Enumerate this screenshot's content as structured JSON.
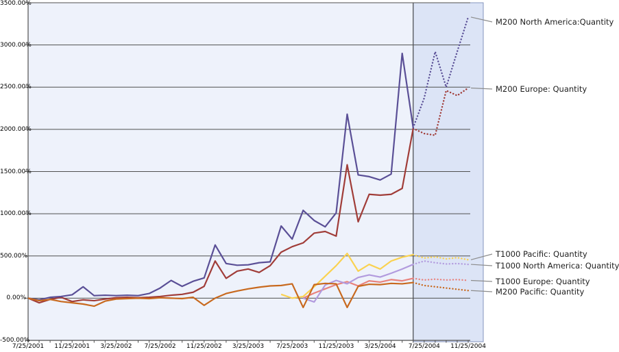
{
  "chart_data": {
    "type": "line",
    "title": "",
    "description": "Time-series forecast chart: solid lines are history, shaded region with dotted lines is the forecast period",
    "x_unit": "month",
    "months": 41,
    "forecast_start_index": 35,
    "x_tick_month_indices": [
      0,
      4,
      8,
      12,
      16,
      20,
      24,
      28,
      32,
      36,
      40
    ],
    "x_tick_labels": [
      "7/25/2001",
      "11/25/2001",
      "3/25/2002",
      "7/25/2002",
      "11/25/2002",
      "3/25/2003",
      "7/25/2003",
      "11/25/2003",
      "3/25/2004",
      "7/25/2004",
      "11/25/2004"
    ],
    "y_axis": {
      "min": -500,
      "max": 3500,
      "step": 500,
      "tick_labels": [
        "3500.00%",
        "3000.00%",
        "2500.00%",
        "2000.00%",
        "1500.00%",
        "1000.00%",
        "500.00%",
        "0.00%",
        "-500.00%"
      ]
    },
    "grid": true,
    "legend_position": "right-callouts",
    "series": [
      {
        "name": "M200 North America:Quantity",
        "color": "#5a4f96",
        "label_y": 32,
        "values": [
          0,
          -20,
          10,
          20,
          40,
          135,
          30,
          35,
          30,
          35,
          30,
          55,
          120,
          210,
          140,
          200,
          240,
          630,
          410,
          390,
          395,
          420,
          430,
          855,
          700,
          1040,
          920,
          845,
          1010,
          2180,
          1460,
          1440,
          1400,
          1470,
          2900,
          2020,
          2370,
          2920,
          2500,
          2920,
          3330
        ]
      },
      {
        "name": "M200 Europe: Quantity",
        "color": "#a03c38",
        "label_y": 130,
        "values": [
          0,
          -55,
          -15,
          10,
          -40,
          -20,
          -30,
          -10,
          5,
          10,
          5,
          10,
          20,
          35,
          45,
          70,
          140,
          440,
          235,
          320,
          345,
          305,
          385,
          545,
          610,
          655,
          770,
          790,
          735,
          1580,
          905,
          1230,
          1220,
          1230,
          1300,
          2010,
          1950,
          1930,
          2460,
          2400,
          2490
        ]
      },
      {
        "name": "T1000 Pacific: Quantity",
        "color": "#fad250",
        "label_y": 371,
        "values": [
          null,
          null,
          null,
          null,
          null,
          null,
          null,
          null,
          null,
          null,
          null,
          null,
          null,
          null,
          null,
          null,
          null,
          null,
          null,
          null,
          null,
          null,
          null,
          45,
          0,
          20,
          135,
          260,
          385,
          530,
          320,
          400,
          345,
          440,
          485,
          515,
          475,
          490,
          465,
          480,
          455
        ]
      },
      {
        "name": "T1000 North America: Quantity",
        "color": "#b29bde",
        "label_y": 388,
        "values": [
          null,
          null,
          null,
          null,
          null,
          null,
          null,
          null,
          null,
          null,
          null,
          null,
          null,
          null,
          null,
          null,
          null,
          null,
          null,
          null,
          null,
          null,
          null,
          null,
          null,
          0,
          -45,
          155,
          210,
          170,
          245,
          275,
          250,
          295,
          345,
          400,
          440,
          420,
          405,
          410,
          400
        ]
      },
      {
        "name": "T1000 Europe: Quantity",
        "color": "#e8827d",
        "label_y": 411,
        "values": [
          null,
          null,
          null,
          null,
          null,
          null,
          null,
          null,
          null,
          null,
          null,
          null,
          null,
          null,
          null,
          null,
          null,
          null,
          null,
          null,
          null,
          null,
          null,
          null,
          null,
          0,
          60,
          110,
          160,
          195,
          145,
          205,
          190,
          220,
          205,
          235,
          215,
          225,
          215,
          220,
          210
        ]
      },
      {
        "name": "M200 Pacific: Quantity",
        "color": "#c8691e",
        "label_y": 426,
        "values": [
          0,
          -30,
          -15,
          -40,
          -55,
          -70,
          -95,
          -35,
          -10,
          -5,
          0,
          -5,
          5,
          0,
          -5,
          10,
          -85,
          0,
          55,
          85,
          110,
          130,
          145,
          150,
          170,
          -110,
          160,
          175,
          170,
          -110,
          140,
          165,
          160,
          175,
          170,
          185,
          150,
          135,
          120,
          105,
          90
        ]
      }
    ]
  },
  "colors": {
    "page_bg": "#ffffff",
    "plot_bg": "#eef2fb",
    "forecast_region_bg": "#dce4f6",
    "forecast_region_border": "#8494bd",
    "gridline": "#4f4f4f",
    "axis": "#4f4f4f",
    "forecast_boundary": "#4f4f4f",
    "leader_line": "#8c8c8c",
    "label_text": "#1d1d1d"
  }
}
